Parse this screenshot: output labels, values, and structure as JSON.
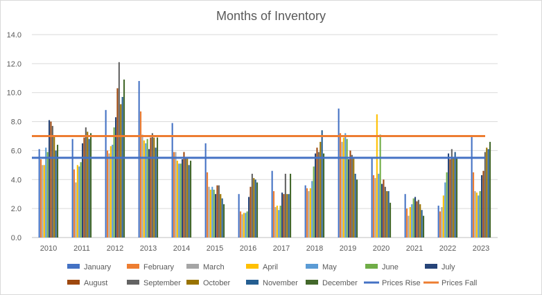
{
  "chart_data": {
    "type": "bar",
    "title": "Months of Inventory",
    "xlabel": "",
    "ylabel": "",
    "ylim": [
      0,
      14
    ],
    "yticks": [
      "0.0",
      "2.0",
      "4.0",
      "6.0",
      "8.0",
      "10.0",
      "12.0",
      "14.0"
    ],
    "grid": true,
    "legend_position": "bottom",
    "categories": [
      "2010",
      "2011",
      "2012",
      "2013",
      "2014",
      "2015",
      "2016",
      "2017",
      "2018",
      "2019",
      "2020",
      "2021",
      "2022",
      "2023"
    ],
    "series": [
      {
        "name": "January",
        "color": "#4472C4",
        "values": [
          6.1,
          6.8,
          8.8,
          10.8,
          7.9,
          6.5,
          3.0,
          4.6,
          3.6,
          8.9,
          5.5,
          3.0,
          2.2,
          7.0
        ]
      },
      {
        "name": "February",
        "color": "#ED7D31",
        "values": [
          5.4,
          4.7,
          6.0,
          8.7,
          5.9,
          4.5,
          1.8,
          3.2,
          3.4,
          7.2,
          4.3,
          2.0,
          1.8,
          4.5
        ]
      },
      {
        "name": "March",
        "color": "#A5A5A5",
        "values": [
          5.0,
          3.8,
          5.8,
          7.1,
          5.9,
          3.5,
          1.6,
          2.1,
          3.2,
          6.6,
          4.1,
          1.5,
          2.1,
          3.2
        ]
      },
      {
        "name": "April",
        "color": "#FFC000",
        "values": [
          5.0,
          5.0,
          6.3,
          6.7,
          5.3,
          3.3,
          1.7,
          2.2,
          3.4,
          6.9,
          8.5,
          2.1,
          2.9,
          3.1
        ]
      },
      {
        "name": "May",
        "color": "#5B9BD5",
        "values": [
          6.2,
          4.9,
          6.4,
          6.5,
          5.1,
          3.5,
          1.7,
          1.9,
          3.9,
          7.2,
          4.4,
          2.3,
          3.8,
          2.9
        ]
      },
      {
        "name": "June",
        "color": "#70AD47",
        "values": [
          5.9,
          5.2,
          7.6,
          6.8,
          5.1,
          3.3,
          1.8,
          2.2,
          4.9,
          6.8,
          7.1,
          2.7,
          4.5,
          3.2
        ]
      },
      {
        "name": "July",
        "color": "#264478",
        "values": [
          8.1,
          6.5,
          8.3,
          6.1,
          5.4,
          3.0,
          2.8,
          3.1,
          5.8,
          5.4,
          3.7,
          2.8,
          5.8,
          4.3
        ]
      },
      {
        "name": "August",
        "color": "#9E480E",
        "values": [
          8.0,
          6.9,
          10.3,
          6.9,
          5.9,
          3.6,
          3.5,
          3.0,
          6.2,
          6.0,
          4.0,
          2.5,
          5.4,
          4.6
        ]
      },
      {
        "name": "September",
        "color": "#636363",
        "values": [
          7.7,
          7.6,
          12.1,
          7.2,
          5.5,
          3.6,
          4.4,
          4.4,
          5.9,
          5.7,
          3.5,
          2.6,
          6.1,
          5.9
        ]
      },
      {
        "name": "October",
        "color": "#997300",
        "values": [
          7.0,
          7.3,
          9.2,
          6.9,
          5.5,
          3.0,
          4.1,
          3.0,
          6.6,
          5.5,
          3.2,
          2.3,
          5.5,
          6.2
        ]
      },
      {
        "name": "November",
        "color": "#255E91",
        "values": [
          6.0,
          6.8,
          9.7,
          6.2,
          5.0,
          2.7,
          4.0,
          3.0,
          7.4,
          4.4,
          3.2,
          1.9,
          5.9,
          6.1
        ]
      },
      {
        "name": "December",
        "color": "#43682B",
        "values": [
          6.4,
          7.2,
          10.9,
          6.9,
          5.3,
          2.3,
          3.8,
          4.4,
          5.8,
          4.0,
          2.4,
          1.5,
          5.5,
          6.6
        ]
      }
    ],
    "reference_lines": [
      {
        "name": "Prices Rise",
        "color": "#4472C4",
        "value": 5.5
      },
      {
        "name": "Prices Fall",
        "color": "#ED7D31",
        "value": 7.0
      }
    ]
  }
}
